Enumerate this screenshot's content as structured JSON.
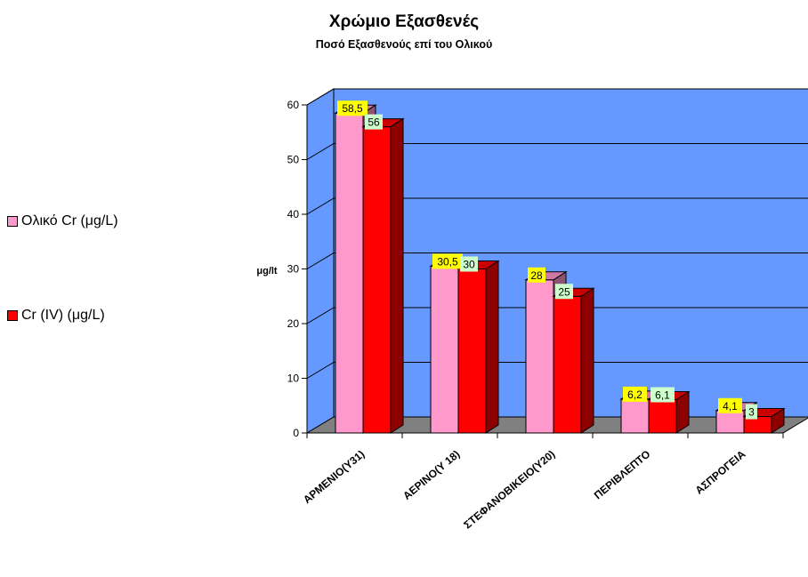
{
  "chart_data": {
    "type": "bar",
    "title": "Χρώμιο Εξασθενές",
    "subtitle": "Ποσό Εξασθενούς επί του Ολικού",
    "ylabel": "μg/lt",
    "xlabel": "",
    "ylim": [
      0,
      60
    ],
    "yticks": [
      0,
      10,
      20,
      30,
      40,
      50,
      60
    ],
    "grid": true,
    "three_d": true,
    "legend_position": "left",
    "plot_background": "#6699ff",
    "floor_color": "#808080",
    "categories": [
      "ΑΡΜΕΝΙΟ(Υ31)",
      "ΑΕΡΙΝΟ(Υ 18)",
      "ΣΤΕΦΑΝΟΒΙΚΕΙΟ(Υ20)",
      "ΠΕΡΙΒΛΕΠΤΟ",
      "ΑΣΠΡΟΓΕΙΑ"
    ],
    "series": [
      {
        "name": "Ολικό Cr (μg/L)",
        "values": [
          58.5,
          30.5,
          28,
          6.2,
          4.1
        ],
        "labels": [
          "58,5",
          "30,5",
          "28",
          "6,2",
          "4,1"
        ],
        "color": "#ff99cc",
        "label_bg": "#ffff00"
      },
      {
        "name": "Cr (IV) (μg/L)",
        "values": [
          56,
          30,
          25,
          6.1,
          3
        ],
        "labels": [
          "56",
          "30",
          "25",
          "6,1",
          "3"
        ],
        "color": "#ff0000",
        "label_bg": "#ccffcc"
      }
    ]
  }
}
